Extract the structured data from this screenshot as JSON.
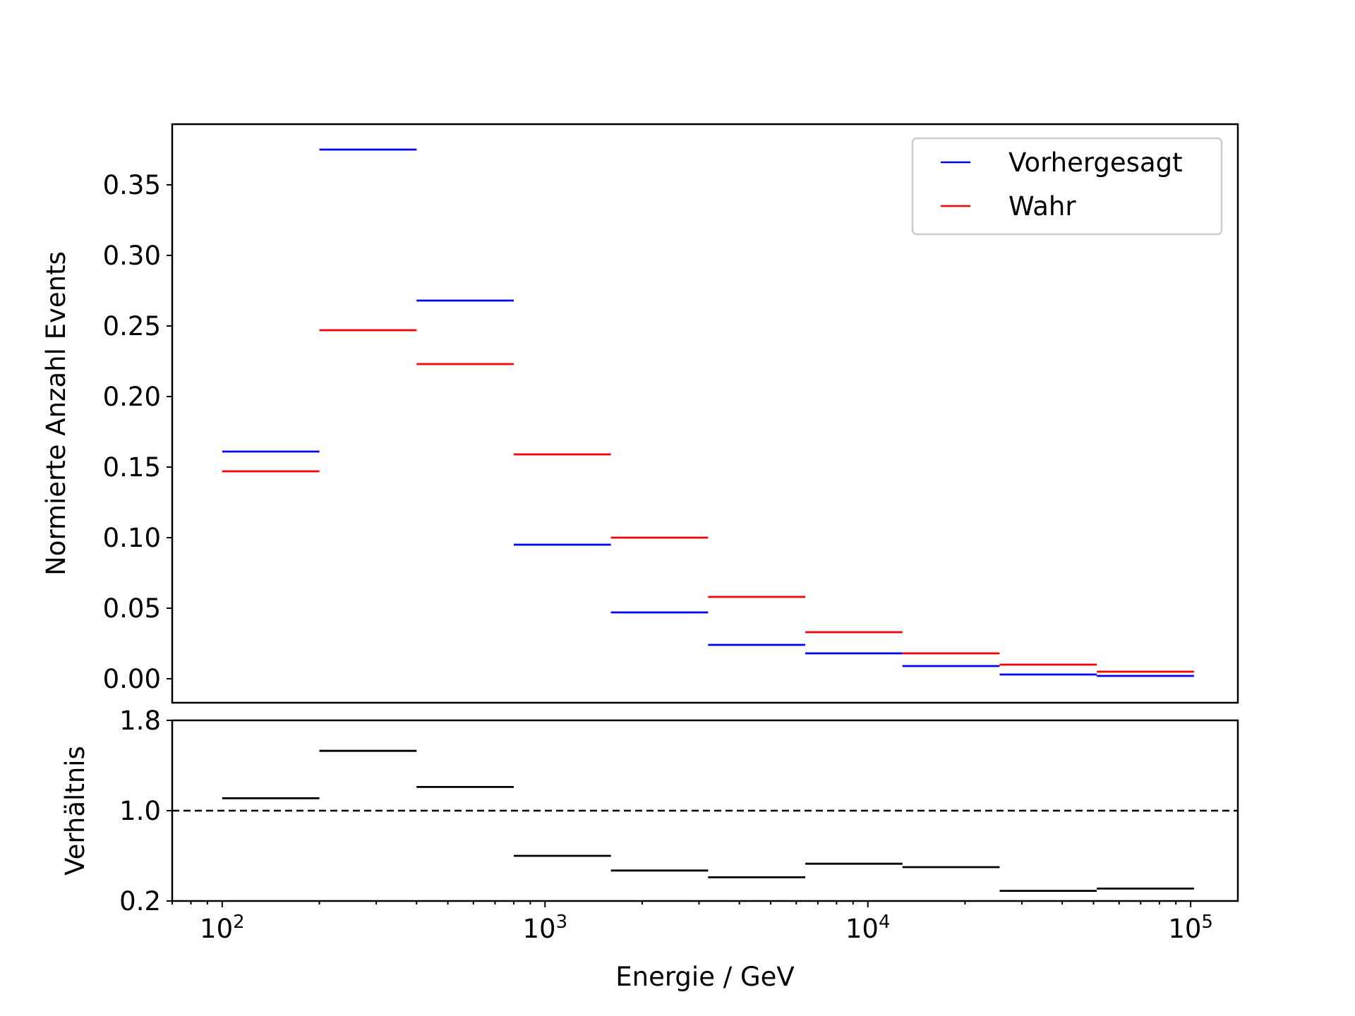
{
  "chart_data": [
    {
      "type": "step",
      "panel": "top",
      "xscale": "log",
      "xlim": [
        70,
        140000
      ],
      "ylim": [
        -0.017,
        0.393
      ],
      "ylabel": "Normierte Anzahl Events",
      "yticks": [
        0.0,
        0.05,
        0.1,
        0.15,
        0.2,
        0.25,
        0.3,
        0.35
      ],
      "ytick_labels": [
        "0.00",
        "0.05",
        "0.10",
        "0.15",
        "0.20",
        "0.25",
        "0.30",
        "0.35"
      ],
      "bin_edges": [
        100,
        200,
        400,
        800,
        1600,
        3200,
        6400,
        12800,
        25600,
        51200,
        102400
      ],
      "series": [
        {
          "name": "Vorhergesagt",
          "color": "#0000ff",
          "values": [
            0.161,
            0.375,
            0.268,
            0.095,
            0.047,
            0.024,
            0.018,
            0.009,
            0.003,
            0.002
          ]
        },
        {
          "name": "Wahr",
          "color": "#ff0000",
          "values": [
            0.147,
            0.247,
            0.223,
            0.159,
            0.1,
            0.058,
            0.033,
            0.018,
            0.01,
            0.005
          ]
        }
      ],
      "legend": {
        "position": "top-right",
        "entries": [
          "Vorhergesagt",
          "Wahr"
        ]
      }
    },
    {
      "type": "step",
      "panel": "bottom",
      "xscale": "log",
      "xlim": [
        70,
        140000
      ],
      "ylim": [
        0.2,
        1.8
      ],
      "ylabel": "Verhältnis",
      "xlabel": "Energie / GeV",
      "yticks": [
        0.2,
        1.0,
        1.8
      ],
      "ytick_labels": [
        "0.2",
        "1.0",
        "1.8"
      ],
      "xticks": [
        100,
        1000,
        10000,
        100000
      ],
      "xtick_labels": [
        {
          "base": "10",
          "exp": "2"
        },
        {
          "base": "10",
          "exp": "3"
        },
        {
          "base": "10",
          "exp": "4"
        },
        {
          "base": "10",
          "exp": "5"
        }
      ],
      "reference_line": {
        "y": 1.0,
        "style": "dashed",
        "color": "#000000"
      },
      "bin_edges": [
        100,
        200,
        400,
        800,
        1600,
        3200,
        6400,
        12800,
        25600,
        51200,
        102400
      ],
      "series": [
        {
          "name": "",
          "color": "#000000",
          "values": [
            1.11,
            1.53,
            1.21,
            0.6,
            0.47,
            0.41,
            0.53,
            0.5,
            0.29,
            0.31
          ]
        }
      ]
    }
  ]
}
